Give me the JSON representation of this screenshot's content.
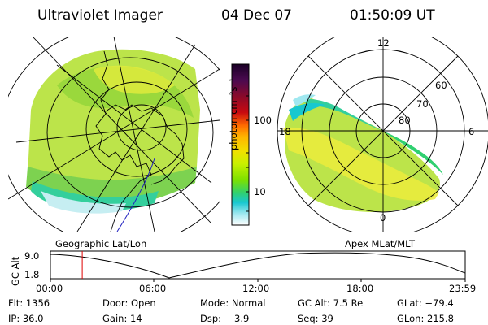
{
  "header": {
    "instrument": "Ultraviolet Imager",
    "date": "04 Dec 07",
    "time": "01:50:09 UT"
  },
  "geo_panel": {
    "caption": "Geographic Lat/Lon"
  },
  "apex_panel": {
    "caption": "Apex MLat/MLT",
    "mlt_labels": [
      "12",
      "18",
      "6",
      "0"
    ],
    "mlat_labels": [
      "60",
      "70",
      "80"
    ]
  },
  "colorbar": {
    "unit_label": "photon cm⁻²s⁻¹",
    "ticks": [
      "100",
      "10"
    ],
    "colors": [
      "#1a0026",
      "#4b0a50",
      "#8a0a2a",
      "#c80a10",
      "#ff6a00",
      "#ffb400",
      "#f0e000",
      "#c8f000",
      "#7ce000",
      "#30d070",
      "#18c8d0",
      "#a0e8f0",
      "#ffffff"
    ]
  },
  "timeline": {
    "ylabel": "GC Alt",
    "y_ticks": [
      "9.0",
      "1.8"
    ],
    "x_ticks": [
      "00:00",
      "06:00",
      "12:00",
      "18:00",
      "23:59"
    ],
    "current_time_hours": 1.84,
    "marker_color": "#e00000"
  },
  "info": {
    "flt": "Flt: 1356",
    "ip": "IP: 36.0",
    "door": "Door: Open",
    "gain": "Gain: 14",
    "mode": "Mode: Normal",
    "dsp_label": "Dsp:",
    "dsp_value": "3.9",
    "gc_alt": "GC Alt: 7.5 Re",
    "seq": "Seq: 39",
    "glat": "GLat: −79.4",
    "glon": "GLon: 215.8"
  }
}
